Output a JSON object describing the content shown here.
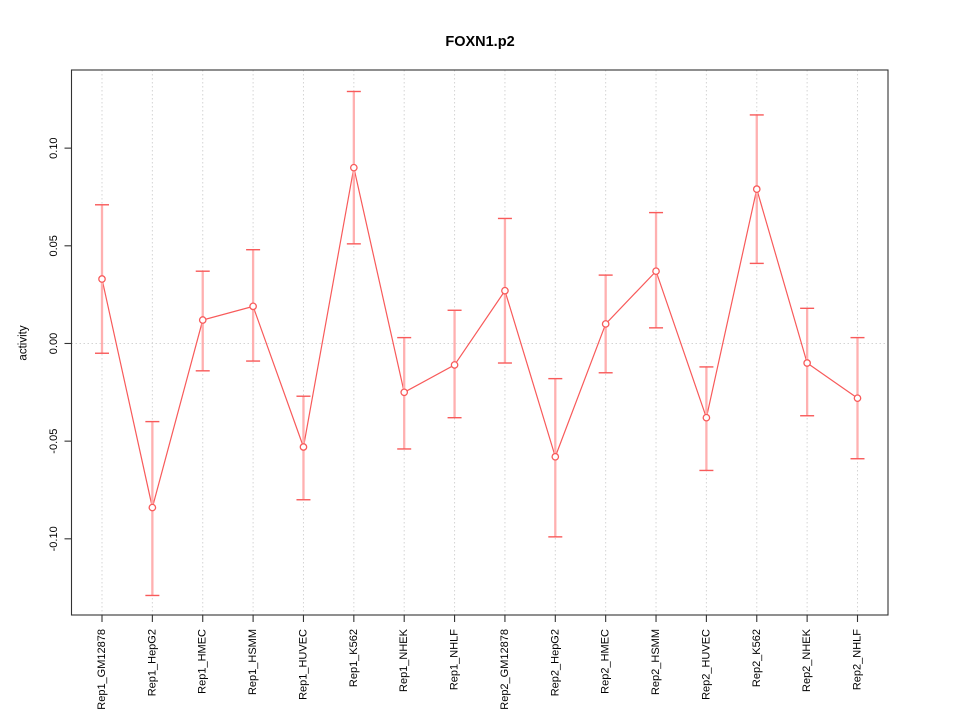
{
  "chart_data": {
    "type": "scatter",
    "subtype": "points-with-error-bars",
    "title": "FOXN1.p2",
    "xlabel": "",
    "ylabel": "activity",
    "categories": [
      "Rep1_GM12878",
      "Rep1_HepG2",
      "Rep1_HMEC",
      "Rep1_HSMM",
      "Rep1_HUVEC",
      "Rep1_K562",
      "Rep1_NHEK",
      "Rep1_NHLF",
      "Rep2_GM12878",
      "Rep2_HepG2",
      "Rep2_HMEC",
      "Rep2_HSMM",
      "Rep2_HUVEC",
      "Rep2_K562",
      "Rep2_NHEK",
      "Rep2_NHLF"
    ],
    "series": [
      {
        "name": "activity",
        "values": [
          0.033,
          -0.084,
          0.012,
          0.019,
          -0.053,
          0.09,
          -0.025,
          -0.011,
          0.027,
          -0.058,
          0.01,
          0.037,
          -0.038,
          0.079,
          -0.01,
          -0.028
        ],
        "ci_low": [
          -0.005,
          -0.129,
          -0.014,
          -0.009,
          -0.08,
          0.051,
          -0.054,
          -0.038,
          -0.01,
          -0.099,
          -0.015,
          0.008,
          -0.065,
          0.041,
          -0.037,
          -0.059
        ],
        "ci_high": [
          0.071,
          -0.04,
          0.037,
          0.048,
          -0.027,
          0.129,
          0.003,
          0.017,
          0.064,
          -0.018,
          0.035,
          0.067,
          -0.012,
          0.117,
          0.018,
          0.003
        ]
      }
    ],
    "yticks": [
      -0.1,
      -0.05,
      0.0,
      0.05,
      0.1
    ],
    "ytick_labels": [
      "-0.10",
      "-0.05",
      "0.00",
      "0.05",
      "0.10"
    ],
    "ylim": [
      -0.139,
      0.14
    ],
    "grid": {
      "vertical_dotted_per_category": true,
      "zero_line_dotted": true
    },
    "legend": "none",
    "colors": {
      "point": "#f85a5a",
      "line": "#f85a5a",
      "error_bar_shaft": "#ffb0b0",
      "error_bar_cap": "#f85a5a",
      "gridline": "#d4d4d4",
      "box": "#333333",
      "text": "#000000",
      "background": "#ffffff"
    }
  }
}
